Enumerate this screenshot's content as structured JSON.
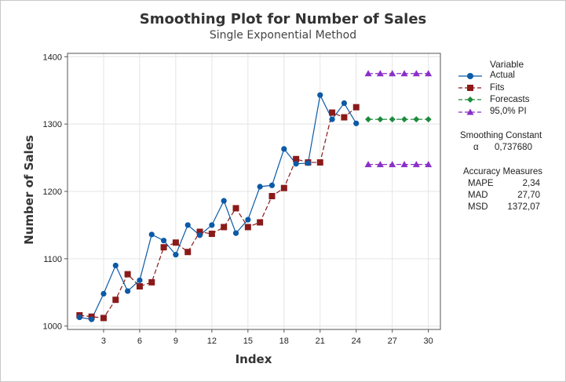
{
  "chart_data": {
    "type": "line",
    "title": "Smoothing Plot for Number of Sales",
    "subtitle": "Single Exponential Method",
    "xlabel": "Index",
    "ylabel": "Number of Sales",
    "xlim": [
      0,
      31
    ],
    "ylim": [
      995,
      1405
    ],
    "xticks": [
      3,
      6,
      9,
      12,
      15,
      18,
      21,
      24,
      27,
      30
    ],
    "yticks": [
      1000,
      1100,
      1200,
      1300,
      1400
    ],
    "grid": true,
    "legend_position": "right",
    "colors": {
      "actual": "#0b5aa6",
      "fits": "#8b1a1a",
      "forecasts": "#1e8a3e",
      "pi": "#8b2fc9"
    },
    "series": [
      {
        "name": "Actual",
        "x": [
          1,
          2,
          3,
          4,
          5,
          6,
          7,
          8,
          9,
          10,
          11,
          12,
          13,
          14,
          15,
          16,
          17,
          18,
          19,
          20,
          21,
          22,
          23,
          24
        ],
        "values": [
          1013,
          1010,
          1048,
          1090,
          1052,
          1068,
          1136,
          1127,
          1106,
          1150,
          1135,
          1150,
          1186,
          1138,
          1158,
          1207,
          1209,
          1263,
          1241,
          1242,
          1343,
          1307,
          1331,
          1301
        ]
      },
      {
        "name": "Fits",
        "x": [
          1,
          2,
          3,
          4,
          5,
          6,
          7,
          8,
          9,
          10,
          11,
          12,
          13,
          14,
          15,
          16,
          17,
          18,
          19,
          20,
          21,
          22,
          23,
          24
        ],
        "values": [
          1016,
          1014,
          1012,
          1039,
          1077,
          1059,
          1065,
          1117,
          1124,
          1110,
          1140,
          1137,
          1147,
          1175,
          1147,
          1154,
          1193,
          1205,
          1248,
          1243,
          1243,
          1317,
          1310,
          1325
        ]
      },
      {
        "name": "Forecasts",
        "x": [
          25,
          26,
          27,
          28,
          29,
          30
        ],
        "values": [
          1307,
          1307,
          1307,
          1307,
          1307,
          1307
        ]
      },
      {
        "name": "95,0% PI",
        "x": [
          25,
          26,
          27,
          28,
          29,
          30
        ],
        "upper": [
          1375,
          1375,
          1375,
          1375,
          1375,
          1375
        ],
        "lower": [
          1240,
          1240,
          1240,
          1240,
          1240,
          1240
        ]
      }
    ]
  },
  "legend": {
    "title": "Variable",
    "items": [
      "Actual",
      "Fits",
      "Forecasts",
      "95,0% PI"
    ]
  },
  "smoothing": {
    "title": "Smoothing Constant",
    "symbol": "α",
    "value": "0,737680"
  },
  "accuracy": {
    "title": "Accuracy Measures",
    "rows": [
      {
        "label": "MAPE",
        "value": "2,34"
      },
      {
        "label": "MAD",
        "value": "27,70"
      },
      {
        "label": "MSD",
        "value": "1372,07"
      }
    ]
  }
}
